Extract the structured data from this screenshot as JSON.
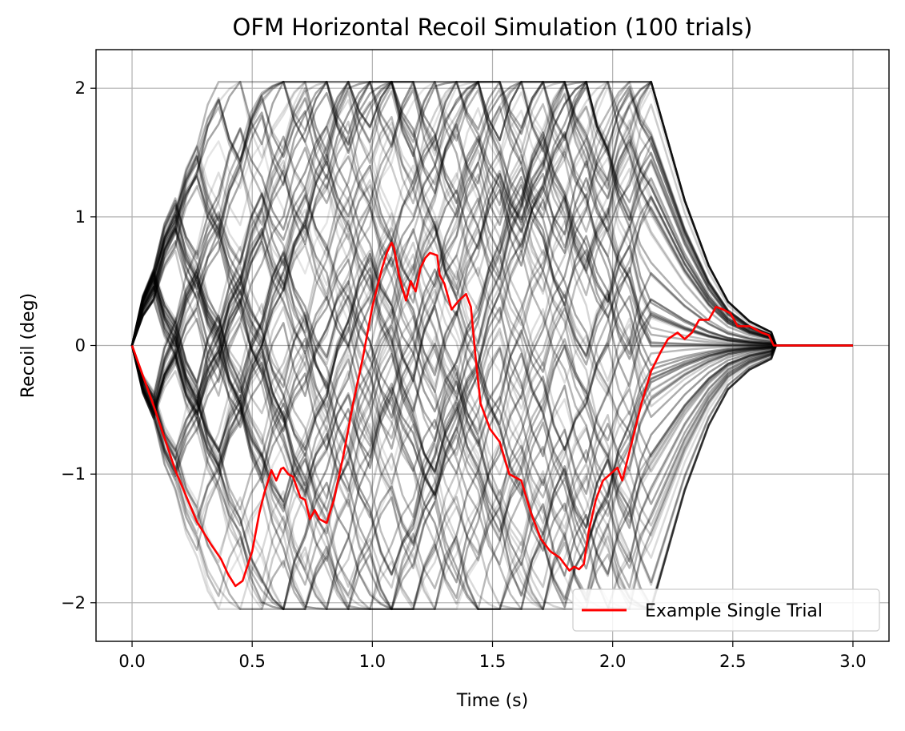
{
  "chart_data": {
    "type": "line",
    "title": "OFM Horizontal Recoil Simulation (100 trials)",
    "xlabel": "Time (s)",
    "ylabel": "Recoil (deg)",
    "xlim": [
      -0.15,
      3.15
    ],
    "ylim": [
      -2.3,
      2.3
    ],
    "x_ticks": [
      0.0,
      0.5,
      1.0,
      1.5,
      2.0,
      2.5,
      3.0
    ],
    "x_tick_labels": [
      "0.0",
      "0.5",
      "1.0",
      "1.5",
      "2.0",
      "2.5",
      "3.0"
    ],
    "y_ticks": [
      -2,
      -1,
      0,
      1,
      2
    ],
    "y_tick_labels": [
      "−2",
      "−1",
      "0",
      "1",
      "2"
    ],
    "grid": true,
    "legend_position": "lower-right",
    "trial_count": 100,
    "trial_color": "#000000",
    "example_color": "#ff0000",
    "series": [
      {
        "name": "Example Single Trial",
        "x": [
          0.0,
          0.09,
          0.18,
          0.27,
          0.33,
          0.37,
          0.4,
          0.43,
          0.46,
          0.5,
          0.53,
          0.55,
          0.58,
          0.6,
          0.62,
          0.63,
          0.65,
          0.67,
          0.7,
          0.72,
          0.74,
          0.76,
          0.78,
          0.81,
          0.84,
          0.88,
          0.92,
          0.96,
          1.0,
          1.04,
          1.06,
          1.08,
          1.09,
          1.11,
          1.14,
          1.16,
          1.18,
          1.2,
          1.22,
          1.24,
          1.27,
          1.28,
          1.3,
          1.33,
          1.36,
          1.39,
          1.41,
          1.43,
          1.45,
          1.49,
          1.53,
          1.57,
          1.62,
          1.66,
          1.7,
          1.74,
          1.78,
          1.82,
          1.84,
          1.86,
          1.88,
          1.9,
          1.93,
          1.96,
          1.99,
          2.02,
          2.04,
          2.08,
          2.12,
          2.16,
          2.2,
          2.23,
          2.27,
          2.3,
          2.33,
          2.36,
          2.4,
          2.43,
          2.46,
          2.49,
          2.52,
          2.55,
          2.57,
          2.6,
          2.62,
          2.65,
          2.67,
          2.8,
          3.0
        ],
        "y": [
          0.0,
          -0.47,
          -0.97,
          -1.37,
          -1.55,
          -1.66,
          -1.78,
          -1.87,
          -1.83,
          -1.6,
          -1.3,
          -1.15,
          -0.97,
          -1.05,
          -0.96,
          -0.95,
          -1.0,
          -1.02,
          -1.18,
          -1.2,
          -1.35,
          -1.28,
          -1.35,
          -1.38,
          -1.2,
          -0.85,
          -0.45,
          -0.1,
          0.3,
          0.6,
          0.72,
          0.8,
          0.76,
          0.55,
          0.35,
          0.5,
          0.42,
          0.6,
          0.68,
          0.72,
          0.7,
          0.55,
          0.48,
          0.28,
          0.35,
          0.4,
          0.3,
          -0.1,
          -0.45,
          -0.65,
          -0.75,
          -1.0,
          -1.05,
          -1.3,
          -1.5,
          -1.6,
          -1.65,
          -1.75,
          -1.72,
          -1.74,
          -1.7,
          -1.45,
          -1.2,
          -1.05,
          -1.0,
          -0.95,
          -1.05,
          -0.75,
          -0.45,
          -0.2,
          -0.05,
          0.05,
          0.1,
          0.05,
          0.1,
          0.2,
          0.2,
          0.3,
          0.28,
          0.25,
          0.15,
          0.15,
          0.15,
          0.12,
          0.1,
          0.08,
          0.0,
          0.0,
          0.0
        ]
      }
    ]
  }
}
